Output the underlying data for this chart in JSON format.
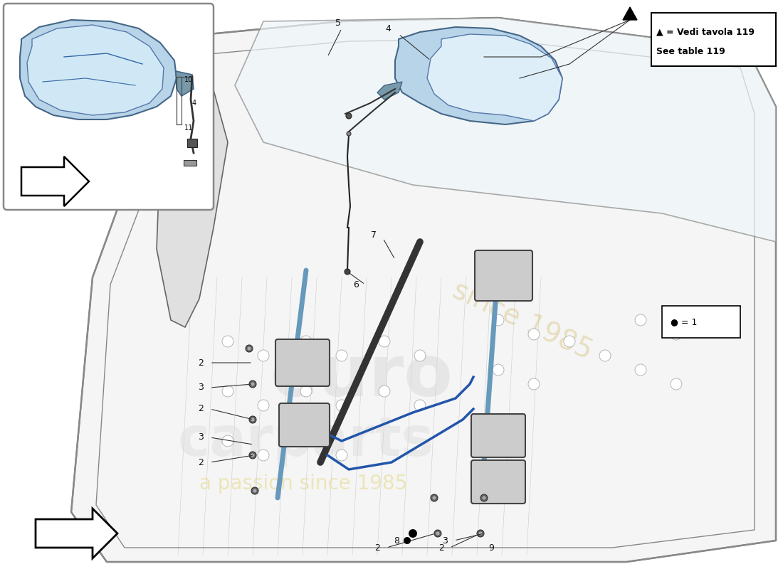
{
  "bg": "#ffffff",
  "legend_line1": "▲ = Vedi tavola 119",
  "legend_line2": "See table 119",
  "bullet_text": "● = 1",
  "mirror_fill": "#b8d4e8",
  "mirror_fill2": "#c8dff0",
  "door_line": "#888888",
  "inner_line": "#aaaaaa",
  "blue_part": "#6699bb",
  "dark_line": "#444444",
  "label_fs": 9,
  "wm_color1": "#d8d8d8",
  "wm_color2": "#e8dfa0"
}
